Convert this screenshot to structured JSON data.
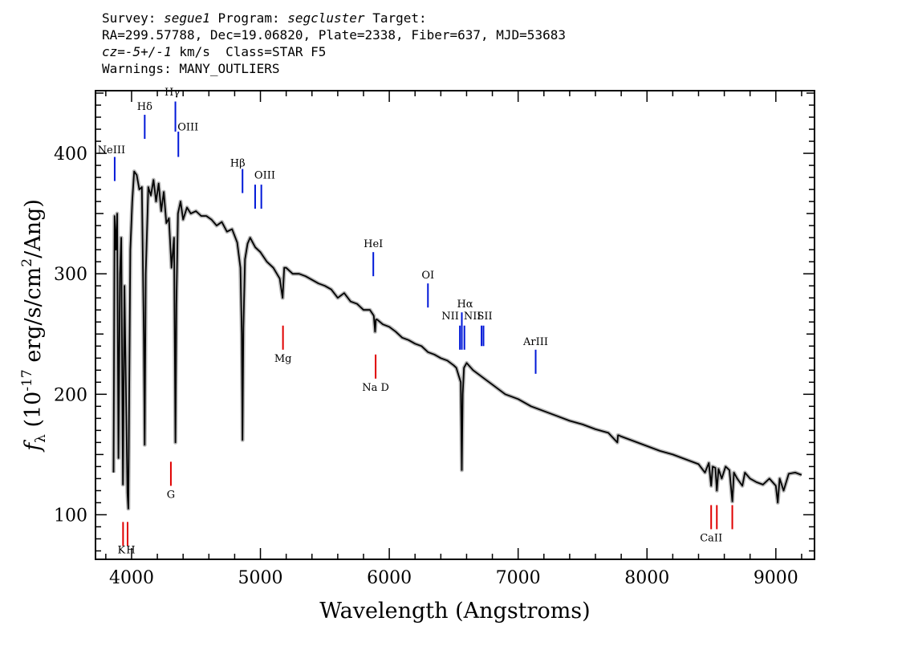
{
  "header": {
    "survey_label": "Survey:",
    "survey": "segue1",
    "program_label": "Program:",
    "program": "segcluster",
    "target_label": "Target:",
    "line2": "RA=299.57788, Dec=19.06820, Plate=2338, Fiber=637, MJD=53683",
    "cz": "cz=-5+/-1",
    "line3_rest": "km/s  Class=STAR F5",
    "line4": "Warnings: MANY_OUTLIERS"
  },
  "chart_data": {
    "type": "line",
    "xlabel": "Wavelength (Angstroms)",
    "ylabel_main": "f",
    "ylabel_sub": "λ",
    "ylabel_unit_a": " (10",
    "ylabel_exp": "-17",
    "ylabel_unit_b": " erg/s/cm",
    "ylabel_exp2": "2",
    "ylabel_unit_c": "/Ang)",
    "xlim": [
      3720,
      9300
    ],
    "ylim": [
      63,
      452
    ],
    "x_ticks": [
      "4000",
      "5000",
      "6000",
      "7000",
      "8000",
      "9000"
    ],
    "y_ticks": [
      "100",
      "200",
      "300",
      "400"
    ],
    "series": [
      {
        "x": [
          3860,
          3868,
          3878,
          3888,
          3898,
          3910,
          3920,
          3933,
          3945,
          3955,
          3968,
          3975,
          3990,
          4005,
          4020,
          4040,
          4060,
          4080,
          4095,
          4102,
          4110,
          4130,
          4150,
          4170,
          4190,
          4210,
          4230,
          4250,
          4270,
          4290,
          4310,
          4330,
          4340,
          4348,
          4360,
          4380,
          4400,
          4430,
          4460,
          4500,
          4540,
          4580,
          4620,
          4660,
          4700,
          4740,
          4780,
          4820,
          4845,
          4855,
          4861,
          4868,
          4880,
          4900,
          4920,
          4960,
          5000,
          5050,
          5100,
          5150,
          5172,
          5185,
          5200,
          5250,
          5300,
          5350,
          5400,
          5450,
          5500,
          5550,
          5600,
          5650,
          5700,
          5750,
          5800,
          5850,
          5875,
          5880,
          5890,
          5896,
          5905,
          5950,
          6000,
          6050,
          6100,
          6150,
          6200,
          6250,
          6300,
          6350,
          6400,
          6450,
          6500,
          6520,
          6540,
          6555,
          6563,
          6570,
          6580,
          6600,
          6650,
          6700,
          6750,
          6800,
          6850,
          6900,
          6950,
          7000,
          7100,
          7200,
          7300,
          7400,
          7500,
          7600,
          7700,
          7770,
          7775,
          7780,
          7800,
          7900,
          8000,
          8100,
          8200,
          8300,
          8400,
          8450,
          8480,
          8498,
          8510,
          8530,
          8542,
          8555,
          8580,
          8610,
          8640,
          8662,
          8675,
          8700,
          8740,
          8760,
          8800,
          8850,
          8900,
          8950,
          9000,
          9015,
          9030,
          9060,
          9100,
          9150,
          9200
        ],
        "y": [
          135,
          348,
          320,
          350,
          147,
          300,
          330,
          125,
          290,
          215,
          118,
          105,
          320,
          360,
          385,
          382,
          370,
          372,
          250,
          158,
          300,
          372,
          365,
          378,
          360,
          375,
          352,
          368,
          342,
          346,
          305,
          330,
          160,
          275,
          350,
          360,
          345,
          355,
          350,
          352,
          348,
          348,
          345,
          340,
          343,
          335,
          337,
          326,
          305,
          250,
          162,
          255,
          312,
          325,
          330,
          322,
          318,
          310,
          305,
          296,
          280,
          305,
          305,
          300,
          300,
          298,
          295,
          292,
          290,
          287,
          280,
          284,
          277,
          275,
          270,
          270,
          266,
          265,
          252,
          262,
          262,
          258,
          256,
          252,
          247,
          245,
          242,
          240,
          235,
          233,
          230,
          228,
          224,
          222,
          215,
          210,
          137,
          200,
          222,
          226,
          220,
          216,
          212,
          208,
          204,
          200,
          198,
          196,
          190,
          186,
          182,
          178,
          175,
          171,
          168,
          160,
          166,
          166,
          165,
          161,
          157,
          153,
          150,
          146,
          142,
          135,
          143,
          124,
          140,
          139,
          120,
          138,
          130,
          140,
          137,
          111,
          135,
          130,
          124,
          135,
          130,
          127,
          125,
          130,
          124,
          110,
          130,
          120,
          134,
          135,
          133
        ]
      }
    ],
    "colors": {
      "line": "#000000",
      "error_band": "#b8b8b8",
      "emission": "#0018d8",
      "absorption": "#e00000"
    },
    "emission_lines": [
      {
        "label": "NeIII",
        "x": 3869,
        "top": 397,
        "bottom": 377,
        "label_y": 400,
        "dx": -4
      },
      {
        "label": "Hδ",
        "x": 4102,
        "top": 432,
        "bottom": 412,
        "label_y": 436,
        "dx": 0
      },
      {
        "label": "Hγ",
        "x": 4340,
        "top": 443,
        "bottom": 418,
        "label_y": 448,
        "dx": -4
      },
      {
        "label": "OIII",
        "x": 4363,
        "top": 418,
        "bottom": 397,
        "label_y": 419,
        "dx": 12
      },
      {
        "label": "Hβ",
        "x": 4861,
        "top": 387,
        "bottom": 367,
        "label_y": 389,
        "dx": -6
      },
      {
        "label": "OIII",
        "x": 4959,
        "top": 374,
        "bottom": 354,
        "label_y": 379,
        "dx": 12
      },
      {
        "label": "OIII",
        "x": 5007,
        "top": 374,
        "bottom": 354,
        "label_y": null,
        "dx": 0
      },
      {
        "label": "HeI",
        "x": 5876,
        "top": 318,
        "bottom": 298,
        "label_y": 322,
        "dx": 0
      },
      {
        "label": "OI",
        "x": 6300,
        "top": 292,
        "bottom": 272,
        "label_y": 296,
        "dx": 0
      },
      {
        "label": "NII",
        "x": 6548,
        "top": 257,
        "bottom": 237,
        "label_y": 262,
        "dx": -12
      },
      {
        "label": "Hα",
        "x": 6563,
        "top": 268,
        "bottom": 237,
        "label_y": 272,
        "dx": 4
      },
      {
        "label": "NII",
        "x": 6583,
        "top": 257,
        "bottom": 237,
        "label_y": 262,
        "dx": 10
      },
      {
        "label": "SII",
        "x": 6716,
        "top": 257,
        "bottom": 240,
        "label_y": 262,
        "dx": 4
      },
      {
        "label": "SII",
        "x": 6731,
        "top": 257,
        "bottom": 240,
        "label_y": null,
        "dx": 0
      },
      {
        "label": "ArIII",
        "x": 7136,
        "top": 237,
        "bottom": 217,
        "label_y": 241,
        "dx": 0
      }
    ],
    "absorption_lines": [
      {
        "label": "K",
        "x": 3934,
        "top": 94,
        "bottom": 74,
        "label_y": 68,
        "dx": -2
      },
      {
        "label": "H",
        "x": 3969,
        "top": 94,
        "bottom": 74,
        "label_y": 68,
        "dx": 4
      },
      {
        "label": "G",
        "x": 4305,
        "top": 144,
        "bottom": 124,
        "label_y": 114,
        "dx": 0
      },
      {
        "label": "Mg",
        "x": 5175,
        "top": 257,
        "bottom": 237,
        "label_y": 227,
        "dx": 0
      },
      {
        "label": "Na D",
        "x": 5894,
        "top": 233,
        "bottom": 213,
        "label_y": 203,
        "dx": 0
      },
      {
        "label": "CaII",
        "x": 8498,
        "top": 108,
        "bottom": 88,
        "label_y": 78,
        "dx": 0
      },
      {
        "label": "CaII",
        "x": 8542,
        "top": 108,
        "bottom": 88,
        "label_y": null,
        "dx": 0
      },
      {
        "label": "CaII",
        "x": 8662,
        "top": 108,
        "bottom": 88,
        "label_y": null,
        "dx": 0
      }
    ]
  }
}
